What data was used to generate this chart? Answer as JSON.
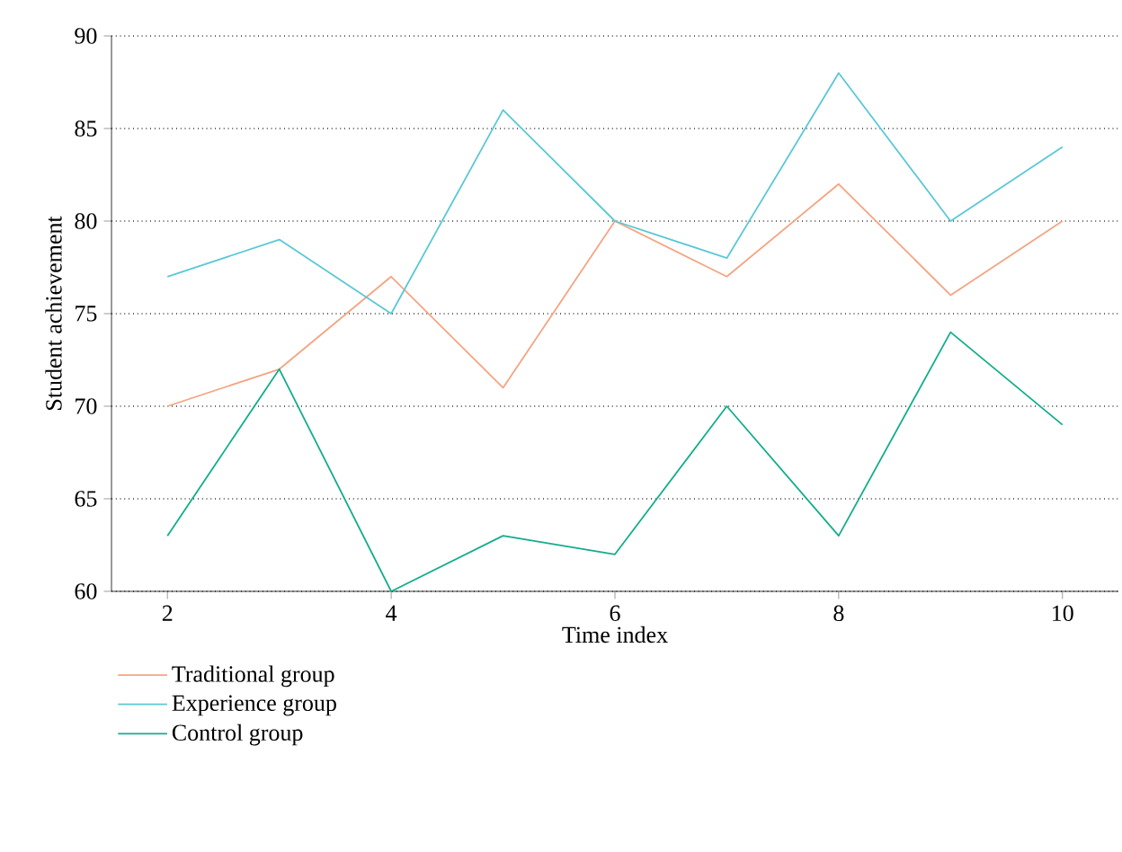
{
  "chart_data": {
    "type": "line",
    "xlabel": "Time index",
    "ylabel": "Student achievement",
    "x": [
      2,
      3,
      4,
      5,
      6,
      7,
      8,
      9,
      10
    ],
    "series": [
      {
        "name": "Traditional group",
        "color": "#f4a582",
        "values": [
          70,
          72,
          77,
          71,
          80,
          77,
          82,
          76,
          80
        ]
      },
      {
        "name": "Experience group",
        "color": "#5bc8d6",
        "values": [
          77,
          79,
          75,
          86,
          80,
          78,
          88,
          80,
          84
        ]
      },
      {
        "name": "Control group",
        "color": "#13ad8c",
        "values": [
          63,
          72,
          60,
          63,
          62,
          70,
          63,
          74,
          69
        ]
      }
    ],
    "xlim": [
      1.5,
      10.5
    ],
    "ylim": [
      60,
      90
    ],
    "xticks": [
      2,
      4,
      6,
      8,
      10
    ],
    "yticks": [
      60,
      65,
      70,
      75,
      80,
      85,
      90
    ],
    "grid": "y",
    "legend": "bottom left",
    "marker": "none",
    "line_style": "solid"
  }
}
